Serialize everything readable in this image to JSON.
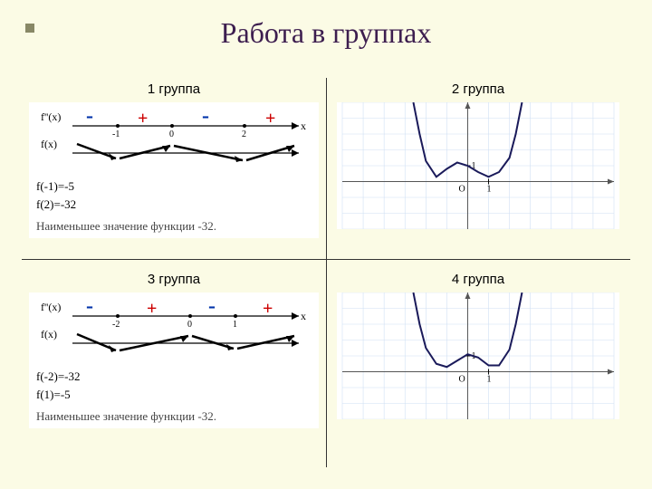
{
  "title": "Работа в группах",
  "colors": {
    "background": "#fbfbe5",
    "title_color": "#3d1e4f",
    "bullet": "#888866",
    "plus": "#cc0000",
    "minus": "#0033aa",
    "grid_line": "#d0e0f4",
    "axis": "#555555",
    "curve": "#1a1a5a"
  },
  "groups": {
    "tl": {
      "label": "1 группа",
      "deriv": {
        "fprime_label": "f''(x)",
        "fx_label": "f(x)",
        "x_label": "x",
        "signs": [
          "-",
          "+",
          "-",
          "+"
        ],
        "ticks": [
          {
            "x": -1,
            "label": "-1"
          },
          {
            "x": 0,
            "label": "0"
          },
          {
            "x": 2,
            "label": "2"
          }
        ]
      },
      "fvals": [
        "f(-1)=-5",
        "f(2)=-32"
      ],
      "min_text": "Наименьшее значение функции -32."
    },
    "tr": {
      "label": "2 группа",
      "plot": {
        "type": "line",
        "origin_label_o": "O",
        "origin_label_1": "1",
        "xlim": [
          -6,
          7
        ],
        "ylim": [
          -3,
          5
        ],
        "grid_step": 1,
        "curve_points": [
          [
            -2.6,
            5
          ],
          [
            -2.3,
            3
          ],
          [
            -2,
            1.3
          ],
          [
            -1.5,
            0.3
          ],
          [
            -1,
            0.8
          ],
          [
            -0.5,
            1.2
          ],
          [
            0,
            1
          ],
          [
            0.5,
            0.6
          ],
          [
            1,
            0.3
          ],
          [
            1.5,
            0.6
          ],
          [
            2,
            1.5
          ],
          [
            2.3,
            3
          ],
          [
            2.6,
            5
          ]
        ]
      }
    },
    "bl": {
      "label": "3 группа",
      "deriv": {
        "fprime_label": "f''(x)",
        "fx_label": "f(x)",
        "x_label": "x",
        "signs": [
          "-",
          "+",
          "-",
          "+"
        ],
        "ticks": [
          {
            "x": -2,
            "label": "-2"
          },
          {
            "x": 0,
            "label": "0"
          },
          {
            "x": 1,
            "label": "1"
          }
        ]
      },
      "fvals": [
        "f(-2)=-32",
        "f(1)=-5"
      ],
      "min_text": "Наименьшее значение функции -32."
    },
    "br": {
      "label": "4 группа",
      "plot": {
        "type": "line",
        "origin_label_o": "O",
        "origin_label_1": "1",
        "xlim": [
          -6,
          7
        ],
        "ylim": [
          -3,
          5
        ],
        "grid_step": 1,
        "curve_points": [
          [
            -2.6,
            5
          ],
          [
            -2.3,
            3
          ],
          [
            -2,
            1.5
          ],
          [
            -1.5,
            0.5
          ],
          [
            -1,
            0.3
          ],
          [
            -0.5,
            0.7
          ],
          [
            0,
            1.1
          ],
          [
            0.5,
            0.9
          ],
          [
            1,
            0.4
          ],
          [
            1.5,
            0.4
          ],
          [
            2,
            1.4
          ],
          [
            2.3,
            3
          ],
          [
            2.6,
            5
          ]
        ]
      }
    }
  }
}
